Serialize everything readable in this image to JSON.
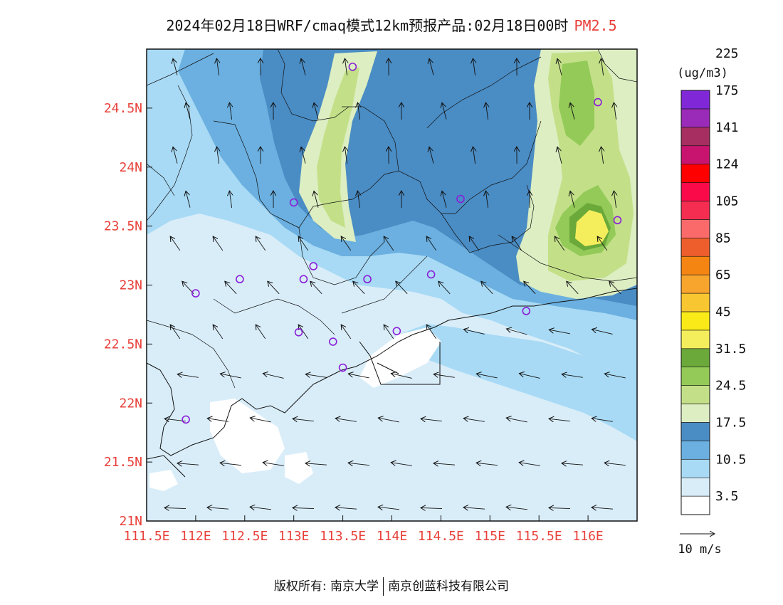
{
  "title": {
    "main": "2024年02月18日WRF/cmaq模式12km预报产品:02月18日00时",
    "variable": "PM2.5"
  },
  "map": {
    "lon_range": [
      111.5,
      116.5
    ],
    "lat_range": [
      21,
      25
    ],
    "lon_ticks": [
      111.5,
      112,
      112.5,
      113,
      113.5,
      114,
      114.5,
      115,
      115.5,
      116
    ],
    "lon_tick_labels": [
      "111.5E",
      "112E",
      "112.5E",
      "113E",
      "113.5E",
      "114E",
      "114.5E",
      "115E",
      "115.5E",
      "116E"
    ],
    "lat_ticks": [
      21,
      21.5,
      22,
      22.5,
      23,
      23.5,
      24,
      24.5
    ],
    "lat_tick_labels": [
      "21N",
      "21.5N",
      "22N",
      "22.5N",
      "23N",
      "23.5N",
      "24N",
      "24.5N"
    ],
    "tick_label_color": "#e8403a",
    "stations": [
      {
        "lon": 113.6,
        "lat": 24.85
      },
      {
        "lon": 116.1,
        "lat": 24.55
      },
      {
        "lon": 113.0,
        "lat": 23.7
      },
      {
        "lon": 114.7,
        "lat": 23.73
      },
      {
        "lon": 116.3,
        "lat": 23.55
      },
      {
        "lon": 113.2,
        "lat": 23.16
      },
      {
        "lon": 114.4,
        "lat": 23.09
      },
      {
        "lon": 112.45,
        "lat": 23.05
      },
      {
        "lon": 113.1,
        "lat": 23.05
      },
      {
        "lon": 113.75,
        "lat": 23.05
      },
      {
        "lon": 112.0,
        "lat": 22.93
      },
      {
        "lon": 115.37,
        "lat": 22.78
      },
      {
        "lon": 113.05,
        "lat": 22.6
      },
      {
        "lon": 113.4,
        "lat": 22.52
      },
      {
        "lon": 114.05,
        "lat": 22.61
      },
      {
        "lon": 113.5,
        "lat": 22.3
      },
      {
        "lon": 111.9,
        "lat": 21.86
      }
    ]
  },
  "legend": {
    "unit": "(ug/m3)",
    "colors": [
      "#ffffff",
      "#d9edf9",
      "#a8daf5",
      "#6bb0e0",
      "#4a8cc4",
      "#dceec2",
      "#c3e088",
      "#93ca58",
      "#6aa93a",
      "#f4ee5c",
      "#faea18",
      "#f8c630",
      "#f8a52e",
      "#f58512",
      "#ee5e2d",
      "#fa6a6a",
      "#f52d50",
      "#fb0a4a",
      "#ff0000",
      "#c8146e",
      "#a62e60",
      "#9a2ab8",
      "#8028d8"
    ],
    "labels": [
      "3.5",
      "10.5",
      "17.5",
      "24.5",
      "31.5",
      "45",
      "65",
      "85",
      "105",
      "124",
      "141",
      "175",
      "225"
    ],
    "wind_ref_label": "10 m/s"
  },
  "footer": {
    "copyright": "版权所有: 南京大学",
    "company": "南京创蓝科技有限公司"
  }
}
